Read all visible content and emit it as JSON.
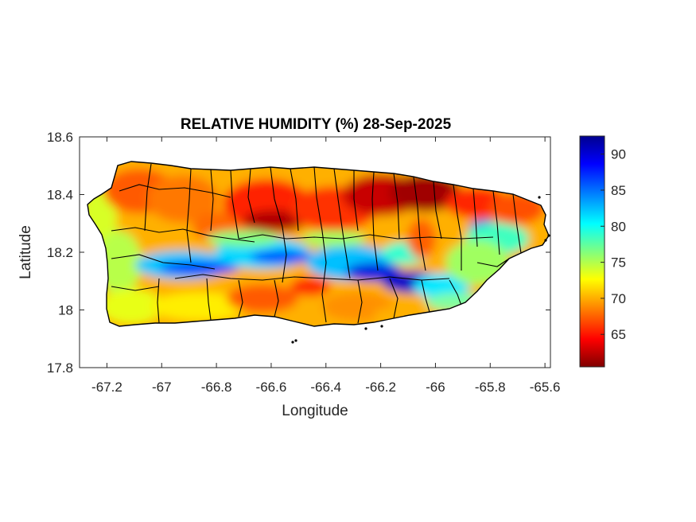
{
  "chart_data": {
    "type": "heatmap",
    "title": "RELATIVE HUMIDITY (%) 28-Sep-2025",
    "xlabel": "Longitude",
    "ylabel": "Latitude",
    "xlim": [
      -67.3,
      -65.58
    ],
    "ylim": [
      17.8,
      18.6
    ],
    "x_ticks": [
      -67.2,
      -67,
      -66.8,
      -66.6,
      -66.4,
      -66.2,
      -66,
      -65.8,
      -65.6
    ],
    "x_tick_labels": [
      "-67.2",
      "-67",
      "-66.8",
      "-66.6",
      "-66.4",
      "-66.2",
      "-66",
      "-65.8",
      "-65.6"
    ],
    "y_ticks": [
      17.8,
      18,
      18.2,
      18.4,
      18.6
    ],
    "y_tick_labels": [
      "17.8",
      "18",
      "18.2",
      "18.4",
      "18.6"
    ],
    "grid": false,
    "colormap": "jet",
    "colorbar": {
      "range": [
        60.5,
        92.5
      ],
      "ticks": [
        65,
        70,
        75,
        80,
        85,
        90
      ],
      "tick_labels": [
        "65",
        "70",
        "75",
        "80",
        "85",
        "90"
      ]
    },
    "colors": {
      "low": "#800000",
      "high": "#00008f",
      "axes": "#262626",
      "boundaries": "#000000"
    }
  }
}
